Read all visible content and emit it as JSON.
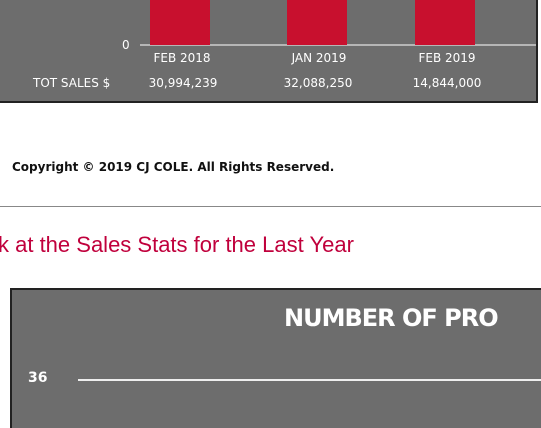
{
  "top_chart": {
    "y_tick": "0",
    "categories": [
      "FEB 2018",
      "JAN 2019",
      "FEB 2019"
    ],
    "row_label": "TOT SALES $",
    "row_values": [
      "30,994,239",
      "32,088,250",
      "14,844,000"
    ]
  },
  "copyright": "Copyright © 2019 CJ COLE. All Rights Reserved.",
  "heading": "k at the Sales Stats for the Last Year",
  "bottom_chart": {
    "title": "NUMBER OF PRO",
    "y_tick": "36"
  }
}
